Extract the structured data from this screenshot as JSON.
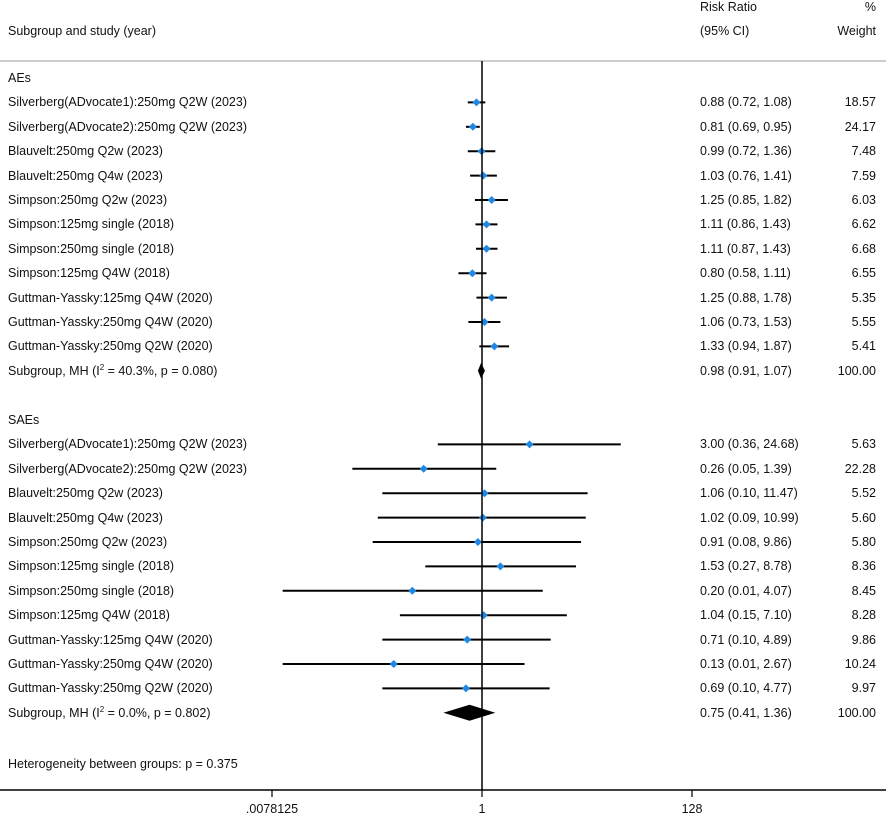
{
  "chart_data": {
    "type": "forest",
    "header": {
      "col_study": "Subgroup and study (year)",
      "col_effect_line1": "Risk Ratio",
      "col_effect_line2": "(95% CI)",
      "col_weight_line1": "%",
      "col_weight_line2": "Weight"
    },
    "x_axis": {
      "scale": "log2",
      "ticks": [
        ".0078125",
        "1",
        "128"
      ],
      "tick_values": [
        0.0078125,
        1,
        128
      ],
      "reference_line": 1
    },
    "subgroups": [
      {
        "name": "AEs",
        "studies": [
          {
            "label": "Silverberg(ADvocate1):250mg Q2W (2023)",
            "rr": 0.88,
            "lo": 0.72,
            "hi": 1.08,
            "ci_text": "0.88 (0.72, 1.08)",
            "weight": "18.57"
          },
          {
            "label": "Silverberg(ADvocate2):250mg Q2W (2023)",
            "rr": 0.81,
            "lo": 0.69,
            "hi": 0.95,
            "ci_text": "0.81 (0.69, 0.95)",
            "weight": "24.17"
          },
          {
            "label": "Blauvelt:250mg  Q2w (2023)",
            "rr": 0.99,
            "lo": 0.72,
            "hi": 1.36,
            "ci_text": "0.99 (0.72, 1.36)",
            "weight": "7.48"
          },
          {
            "label": "Blauvelt:250mg  Q4w (2023)",
            "rr": 1.03,
            "lo": 0.76,
            "hi": 1.41,
            "ci_text": "1.03 (0.76, 1.41)",
            "weight": "7.59"
          },
          {
            "label": "Simpson:250mg  Q2w (2023)",
            "rr": 1.25,
            "lo": 0.85,
            "hi": 1.82,
            "ci_text": "1.25 (0.85, 1.82)",
            "weight": "6.03"
          },
          {
            "label": "Simpson:125mg single (2018)",
            "rr": 1.11,
            "lo": 0.86,
            "hi": 1.43,
            "ci_text": "1.11 (0.86, 1.43)",
            "weight": "6.62"
          },
          {
            "label": "Simpson:250mg single (2018)",
            "rr": 1.11,
            "lo": 0.87,
            "hi": 1.43,
            "ci_text": "1.11 (0.87, 1.43)",
            "weight": "6.68"
          },
          {
            "label": "Simpson:125mg Q4W (2018)",
            "rr": 0.8,
            "lo": 0.58,
            "hi": 1.11,
            "ci_text": "0.80 (0.58, 1.11)",
            "weight": "6.55"
          },
          {
            "label": "Guttman-Yassky:125mg Q4W (2020)",
            "rr": 1.25,
            "lo": 0.88,
            "hi": 1.78,
            "ci_text": "1.25 (0.88, 1.78)",
            "weight": "5.35"
          },
          {
            "label": "Guttman-Yassky:250mg Q4W (2020)",
            "rr": 1.06,
            "lo": 0.73,
            "hi": 1.53,
            "ci_text": "1.06 (0.73, 1.53)",
            "weight": "5.55"
          },
          {
            "label": "Guttman-Yassky:250mg Q2W (2020)",
            "rr": 1.33,
            "lo": 0.94,
            "hi": 1.87,
            "ci_text": "1.33 (0.94, 1.87)",
            "weight": "5.41"
          }
        ],
        "pooled": {
          "label_prefix": "Subgroup, MH (I",
          "label_sup": "2",
          "label_suffix": " = 40.3%, p = 0.080)",
          "rr": 0.98,
          "lo": 0.91,
          "hi": 1.07,
          "ci_text": "0.98 (0.91, 1.07)",
          "weight": "100.00"
        }
      },
      {
        "name": "SAEs",
        "studies": [
          {
            "label": "Silverberg(ADvocate1):250mg Q2W (2023)",
            "rr": 3.0,
            "lo": 0.36,
            "hi": 24.68,
            "ci_text": "3.00 (0.36, 24.68)",
            "weight": "5.63"
          },
          {
            "label": "Silverberg(ADvocate2):250mg Q2W (2023)",
            "rr": 0.26,
            "lo": 0.05,
            "hi": 1.39,
            "ci_text": "0.26 (0.05, 1.39)",
            "weight": "22.28"
          },
          {
            "label": "Blauvelt:250mg  Q2w (2023)",
            "rr": 1.06,
            "lo": 0.1,
            "hi": 11.47,
            "ci_text": "1.06 (0.10, 11.47)",
            "weight": "5.52"
          },
          {
            "label": "Blauvelt:250mg  Q4w (2023)",
            "rr": 1.02,
            "lo": 0.09,
            "hi": 10.99,
            "ci_text": "1.02 (0.09, 10.99)",
            "weight": "5.60"
          },
          {
            "label": "Simpson:250mg  Q2w (2023)",
            "rr": 0.91,
            "lo": 0.08,
            "hi": 9.86,
            "ci_text": "0.91 (0.08, 9.86)",
            "weight": "5.80"
          },
          {
            "label": "Simpson:125mg single (2018)",
            "rr": 1.53,
            "lo": 0.27,
            "hi": 8.78,
            "ci_text": "1.53 (0.27, 8.78)",
            "weight": "8.36"
          },
          {
            "label": "Simpson:250mg single (2018)",
            "rr": 0.2,
            "lo": 0.01,
            "hi": 4.07,
            "ci_text": "0.20 (0.01, 4.07)",
            "weight": "8.45"
          },
          {
            "label": "Simpson:125mg Q4W (2018)",
            "rr": 1.04,
            "lo": 0.15,
            "hi": 7.1,
            "ci_text": "1.04 (0.15, 7.10)",
            "weight": "8.28"
          },
          {
            "label": "Guttman-Yassky:125mg Q4W (2020)",
            "rr": 0.71,
            "lo": 0.1,
            "hi": 4.89,
            "ci_text": "0.71 (0.10, 4.89)",
            "weight": "9.86"
          },
          {
            "label": "Guttman-Yassky:250mg Q4W (2020)",
            "rr": 0.13,
            "lo": 0.01,
            "hi": 2.67,
            "ci_text": "0.13 (0.01, 2.67)",
            "weight": "10.24"
          },
          {
            "label": "Guttman-Yassky:250mg Q2W (2020)",
            "rr": 0.69,
            "lo": 0.1,
            "hi": 4.77,
            "ci_text": "0.69 (0.10, 4.77)",
            "weight": "9.97"
          }
        ],
        "pooled": {
          "label_prefix": "Subgroup, MH (I",
          "label_sup": "2",
          "label_suffix": " = 0.0%, p = 0.802)",
          "rr": 0.75,
          "lo": 0.41,
          "hi": 1.36,
          "ci_text": "0.75 (0.41, 1.36)",
          "weight": "100.00"
        }
      }
    ],
    "heterogeneity_note": "Heterogeneity between groups: p = 0.375",
    "colors": {
      "marker": "#1e88e5",
      "line": "#000000",
      "divider": "#999999"
    }
  }
}
